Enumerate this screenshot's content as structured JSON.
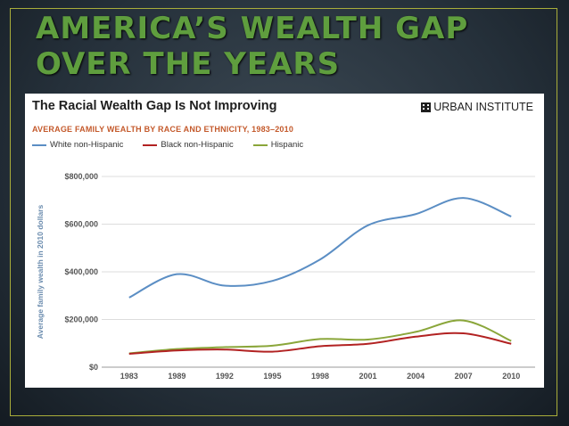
{
  "slide": {
    "title_line1": "AMERICA’S WEALTH GAP",
    "title_line2": "OVER THE YEARS"
  },
  "brand": {
    "name": "URBAN INSTITUTE",
    "icon": "building-icon"
  },
  "colors": {
    "white": "#5b8ec4",
    "black": "#b22222",
    "hispanic": "#8aa63a",
    "title_green": "#5f9e3e",
    "frame": "#a9ad3a",
    "subtitle": "#c45a2c"
  },
  "chart_data": {
    "type": "line",
    "title": "The Racial Wealth Gap Is Not Improving",
    "subtitle": "AVERAGE FAMILY WEALTH BY RACE AND ETHNICITY, 1983–2010",
    "xlabel": "",
    "ylabel": "Average family wealth in 2010 dollars",
    "categories": [
      "1983",
      "1989",
      "1992",
      "1995",
      "1998",
      "2001",
      "2004",
      "2007",
      "2010"
    ],
    "ylim": [
      0,
      800000
    ],
    "yticks": [
      0,
      200000,
      400000,
      600000,
      800000
    ],
    "ytick_labels": [
      "$0",
      "$200,000",
      "$400,000",
      "$600,000",
      "$800,000"
    ],
    "grid": true,
    "legend_position": "top-left",
    "series": [
      {
        "name": "White non-Hispanic",
        "color_key": "white",
        "values": [
          292000,
          390000,
          342000,
          362000,
          452000,
          595000,
          642000,
          710000,
          632000
        ]
      },
      {
        "name": "Black non-Hispanic",
        "color_key": "black",
        "values": [
          56000,
          70000,
          74000,
          65000,
          88000,
          98000,
          128000,
          142000,
          98000
        ]
      },
      {
        "name": "Hispanic",
        "color_key": "hispanic",
        "values": [
          58000,
          76000,
          84000,
          90000,
          118000,
          116000,
          148000,
          196000,
          110000
        ]
      }
    ]
  }
}
